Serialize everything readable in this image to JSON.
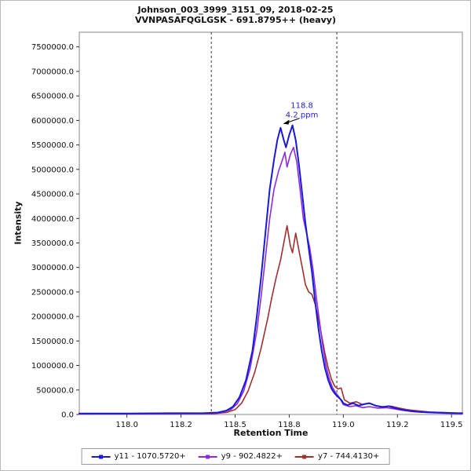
{
  "chart_data": {
    "type": "line",
    "title": "Johnson_003_3999_3151_09, 2018-02-25",
    "subtitle": "VVNPASAFQGLGSK - 691.8795++ (heavy)",
    "xlabel": "Retention Time",
    "ylabel": "Intensity",
    "xlim": [
      117.78,
      119.55
    ],
    "ylim": [
      0,
      7800000
    ],
    "grid": false,
    "legend_position": "bottom",
    "xticks": {
      "values": [
        118.0,
        118.25,
        118.5,
        118.75,
        119.0,
        119.25,
        119.5
      ],
      "labels": [
        "118.0",
        "118.2",
        "118.5",
        "118.8",
        "119.0",
        "119.2",
        "119.5"
      ]
    },
    "yticks": {
      "values": [
        0,
        500000,
        1000000,
        1500000,
        2000000,
        2500000,
        3000000,
        3500000,
        4000000,
        4500000,
        5000000,
        5500000,
        6000000,
        6500000,
        7000000,
        7500000
      ],
      "labels": [
        "0.0",
        "500000.0",
        "1000000.0",
        "1500000.0",
        "2000000.0",
        "2500000.0",
        "3000000.0",
        "3500000.0",
        "4000000.0",
        "4500000.0",
        "5000000.0",
        "5500000.0",
        "6000000.0",
        "6500000.0",
        "7000000.0",
        "7500000.0"
      ]
    },
    "integration_boundaries": [
      118.39,
      118.97
    ],
    "boundary_color": "#333333",
    "annotation": {
      "x": 118.765,
      "y": 5900000,
      "rt_label": "118.8",
      "ppm_label": "4.2 ppm",
      "color": "#2222cc"
    },
    "series": [
      {
        "name": "y11 - 1070.5720+",
        "color": "#1a1ad6",
        "width": 2,
        "points": [
          [
            117.78,
            20000
          ],
          [
            118.0,
            20000
          ],
          [
            118.2,
            25000
          ],
          [
            118.35,
            25000
          ],
          [
            118.42,
            40000
          ],
          [
            118.46,
            80000
          ],
          [
            118.49,
            160000
          ],
          [
            118.52,
            350000
          ],
          [
            118.55,
            700000
          ],
          [
            118.58,
            1300000
          ],
          [
            118.6,
            2000000
          ],
          [
            118.62,
            2800000
          ],
          [
            118.64,
            3700000
          ],
          [
            118.66,
            4600000
          ],
          [
            118.68,
            5200000
          ],
          [
            118.695,
            5600000
          ],
          [
            118.71,
            5850000
          ],
          [
            118.725,
            5600000
          ],
          [
            118.735,
            5450000
          ],
          [
            118.75,
            5700000
          ],
          [
            118.765,
            5900000
          ],
          [
            118.78,
            5600000
          ],
          [
            118.795,
            5100000
          ],
          [
            118.81,
            4500000
          ],
          [
            118.825,
            3900000
          ],
          [
            118.84,
            3400000
          ],
          [
            118.855,
            2900000
          ],
          [
            118.87,
            2300000
          ],
          [
            118.885,
            1750000
          ],
          [
            118.9,
            1300000
          ],
          [
            118.915,
            950000
          ],
          [
            118.93,
            700000
          ],
          [
            118.945,
            530000
          ],
          [
            118.96,
            430000
          ],
          [
            118.975,
            360000
          ],
          [
            118.99,
            300000
          ],
          [
            119.0,
            230000
          ],
          [
            119.02,
            190000
          ],
          [
            119.045,
            230000
          ],
          [
            119.07,
            180000
          ],
          [
            119.095,
            210000
          ],
          [
            119.12,
            230000
          ],
          [
            119.15,
            180000
          ],
          [
            119.18,
            150000
          ],
          [
            119.21,
            170000
          ],
          [
            119.24,
            130000
          ],
          [
            119.27,
            100000
          ],
          [
            119.31,
            70000
          ],
          [
            119.35,
            55000
          ],
          [
            119.4,
            45000
          ],
          [
            119.46,
            35000
          ],
          [
            119.52,
            28000
          ],
          [
            119.55,
            25000
          ]
        ]
      },
      {
        "name": "y9 - 902.4822+",
        "color": "#8a2be2",
        "width": 1.6,
        "points": [
          [
            117.78,
            15000
          ],
          [
            118.0,
            15000
          ],
          [
            118.2,
            18000
          ],
          [
            118.38,
            22000
          ],
          [
            118.44,
            40000
          ],
          [
            118.48,
            100000
          ],
          [
            118.51,
            220000
          ],
          [
            118.54,
            480000
          ],
          [
            118.57,
            950000
          ],
          [
            118.6,
            1700000
          ],
          [
            118.62,
            2400000
          ],
          [
            118.64,
            3200000
          ],
          [
            118.66,
            4000000
          ],
          [
            118.68,
            4600000
          ],
          [
            118.7,
            4950000
          ],
          [
            118.715,
            5150000
          ],
          [
            118.73,
            5350000
          ],
          [
            118.74,
            5050000
          ],
          [
            118.755,
            5300000
          ],
          [
            118.77,
            5450000
          ],
          [
            118.785,
            5150000
          ],
          [
            118.8,
            4600000
          ],
          [
            118.815,
            4000000
          ],
          [
            118.83,
            3700000
          ],
          [
            118.845,
            3400000
          ],
          [
            118.86,
            2950000
          ],
          [
            118.875,
            2400000
          ],
          [
            118.89,
            1900000
          ],
          [
            118.905,
            1400000
          ],
          [
            118.92,
            1000000
          ],
          [
            118.935,
            730000
          ],
          [
            118.95,
            550000
          ],
          [
            118.965,
            440000
          ],
          [
            118.98,
            360000
          ],
          [
            119.0,
            200000
          ],
          [
            119.03,
            160000
          ],
          [
            119.06,
            180000
          ],
          [
            119.09,
            140000
          ],
          [
            119.12,
            160000
          ],
          [
            119.16,
            130000
          ],
          [
            119.2,
            140000
          ],
          [
            119.24,
            110000
          ],
          [
            119.28,
            80000
          ],
          [
            119.33,
            55000
          ],
          [
            119.39,
            38000
          ],
          [
            119.46,
            28000
          ],
          [
            119.52,
            20000
          ],
          [
            119.55,
            18000
          ]
        ]
      },
      {
        "name": "y7 - 744.4130+",
        "color": "#a03030",
        "width": 1.6,
        "points": [
          [
            117.78,
            10000
          ],
          [
            118.0,
            12000
          ],
          [
            118.2,
            14000
          ],
          [
            118.4,
            18000
          ],
          [
            118.46,
            40000
          ],
          [
            118.5,
            100000
          ],
          [
            118.53,
            230000
          ],
          [
            118.56,
            480000
          ],
          [
            118.59,
            850000
          ],
          [
            118.62,
            1350000
          ],
          [
            118.65,
            1950000
          ],
          [
            118.67,
            2400000
          ],
          [
            118.69,
            2800000
          ],
          [
            118.71,
            3150000
          ],
          [
            118.725,
            3500000
          ],
          [
            118.74,
            3850000
          ],
          [
            118.755,
            3450000
          ],
          [
            118.765,
            3300000
          ],
          [
            118.78,
            3700000
          ],
          [
            118.795,
            3350000
          ],
          [
            118.81,
            3000000
          ],
          [
            118.825,
            2650000
          ],
          [
            118.84,
            2500000
          ],
          [
            118.855,
            2450000
          ],
          [
            118.87,
            2250000
          ],
          [
            118.885,
            1950000
          ],
          [
            118.9,
            1600000
          ],
          [
            118.915,
            1250000
          ],
          [
            118.93,
            950000
          ],
          [
            118.945,
            720000
          ],
          [
            118.96,
            580000
          ],
          [
            118.975,
            520000
          ],
          [
            118.99,
            540000
          ],
          [
            119.005,
            300000
          ],
          [
            119.03,
            230000
          ],
          [
            119.06,
            260000
          ],
          [
            119.09,
            200000
          ],
          [
            119.12,
            230000
          ],
          [
            119.15,
            180000
          ],
          [
            119.18,
            160000
          ],
          [
            119.22,
            170000
          ],
          [
            119.26,
            130000
          ],
          [
            119.3,
            95000
          ],
          [
            119.35,
            70000
          ],
          [
            119.4,
            50000
          ],
          [
            119.46,
            38000
          ],
          [
            119.52,
            28000
          ],
          [
            119.55,
            22000
          ]
        ]
      }
    ]
  }
}
